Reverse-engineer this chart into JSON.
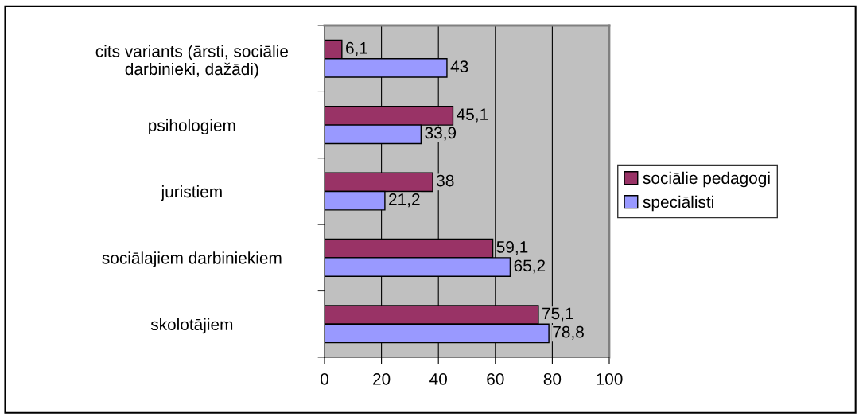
{
  "chart_data": {
    "type": "bar",
    "orientation": "horizontal",
    "categories": [
      "cits variants (ārsti, sociālie\ndarbinieki, dažādi)",
      "psihologiem",
      "juristiem",
      "sociālajiem darbiniekiem",
      "skolotājiem"
    ],
    "series": [
      {
        "name": "sociālie pedagogi",
        "color": "#993366",
        "values": [
          6.1,
          45.1,
          38,
          59.1,
          75.1
        ],
        "value_labels": [
          "6,1",
          "45,1",
          "38",
          "59,1",
          "75,1"
        ]
      },
      {
        "name": "speciālisti",
        "color": "#9999ff",
        "values": [
          43,
          33.9,
          21.2,
          65.2,
          78.8
        ],
        "value_labels": [
          "43",
          "33,9",
          "21,2",
          "65,2",
          "78,8"
        ]
      }
    ],
    "xlim": [
      0,
      100
    ],
    "xticks": [
      0,
      20,
      40,
      60,
      80,
      100
    ],
    "grid": "x",
    "legend": "right"
  }
}
